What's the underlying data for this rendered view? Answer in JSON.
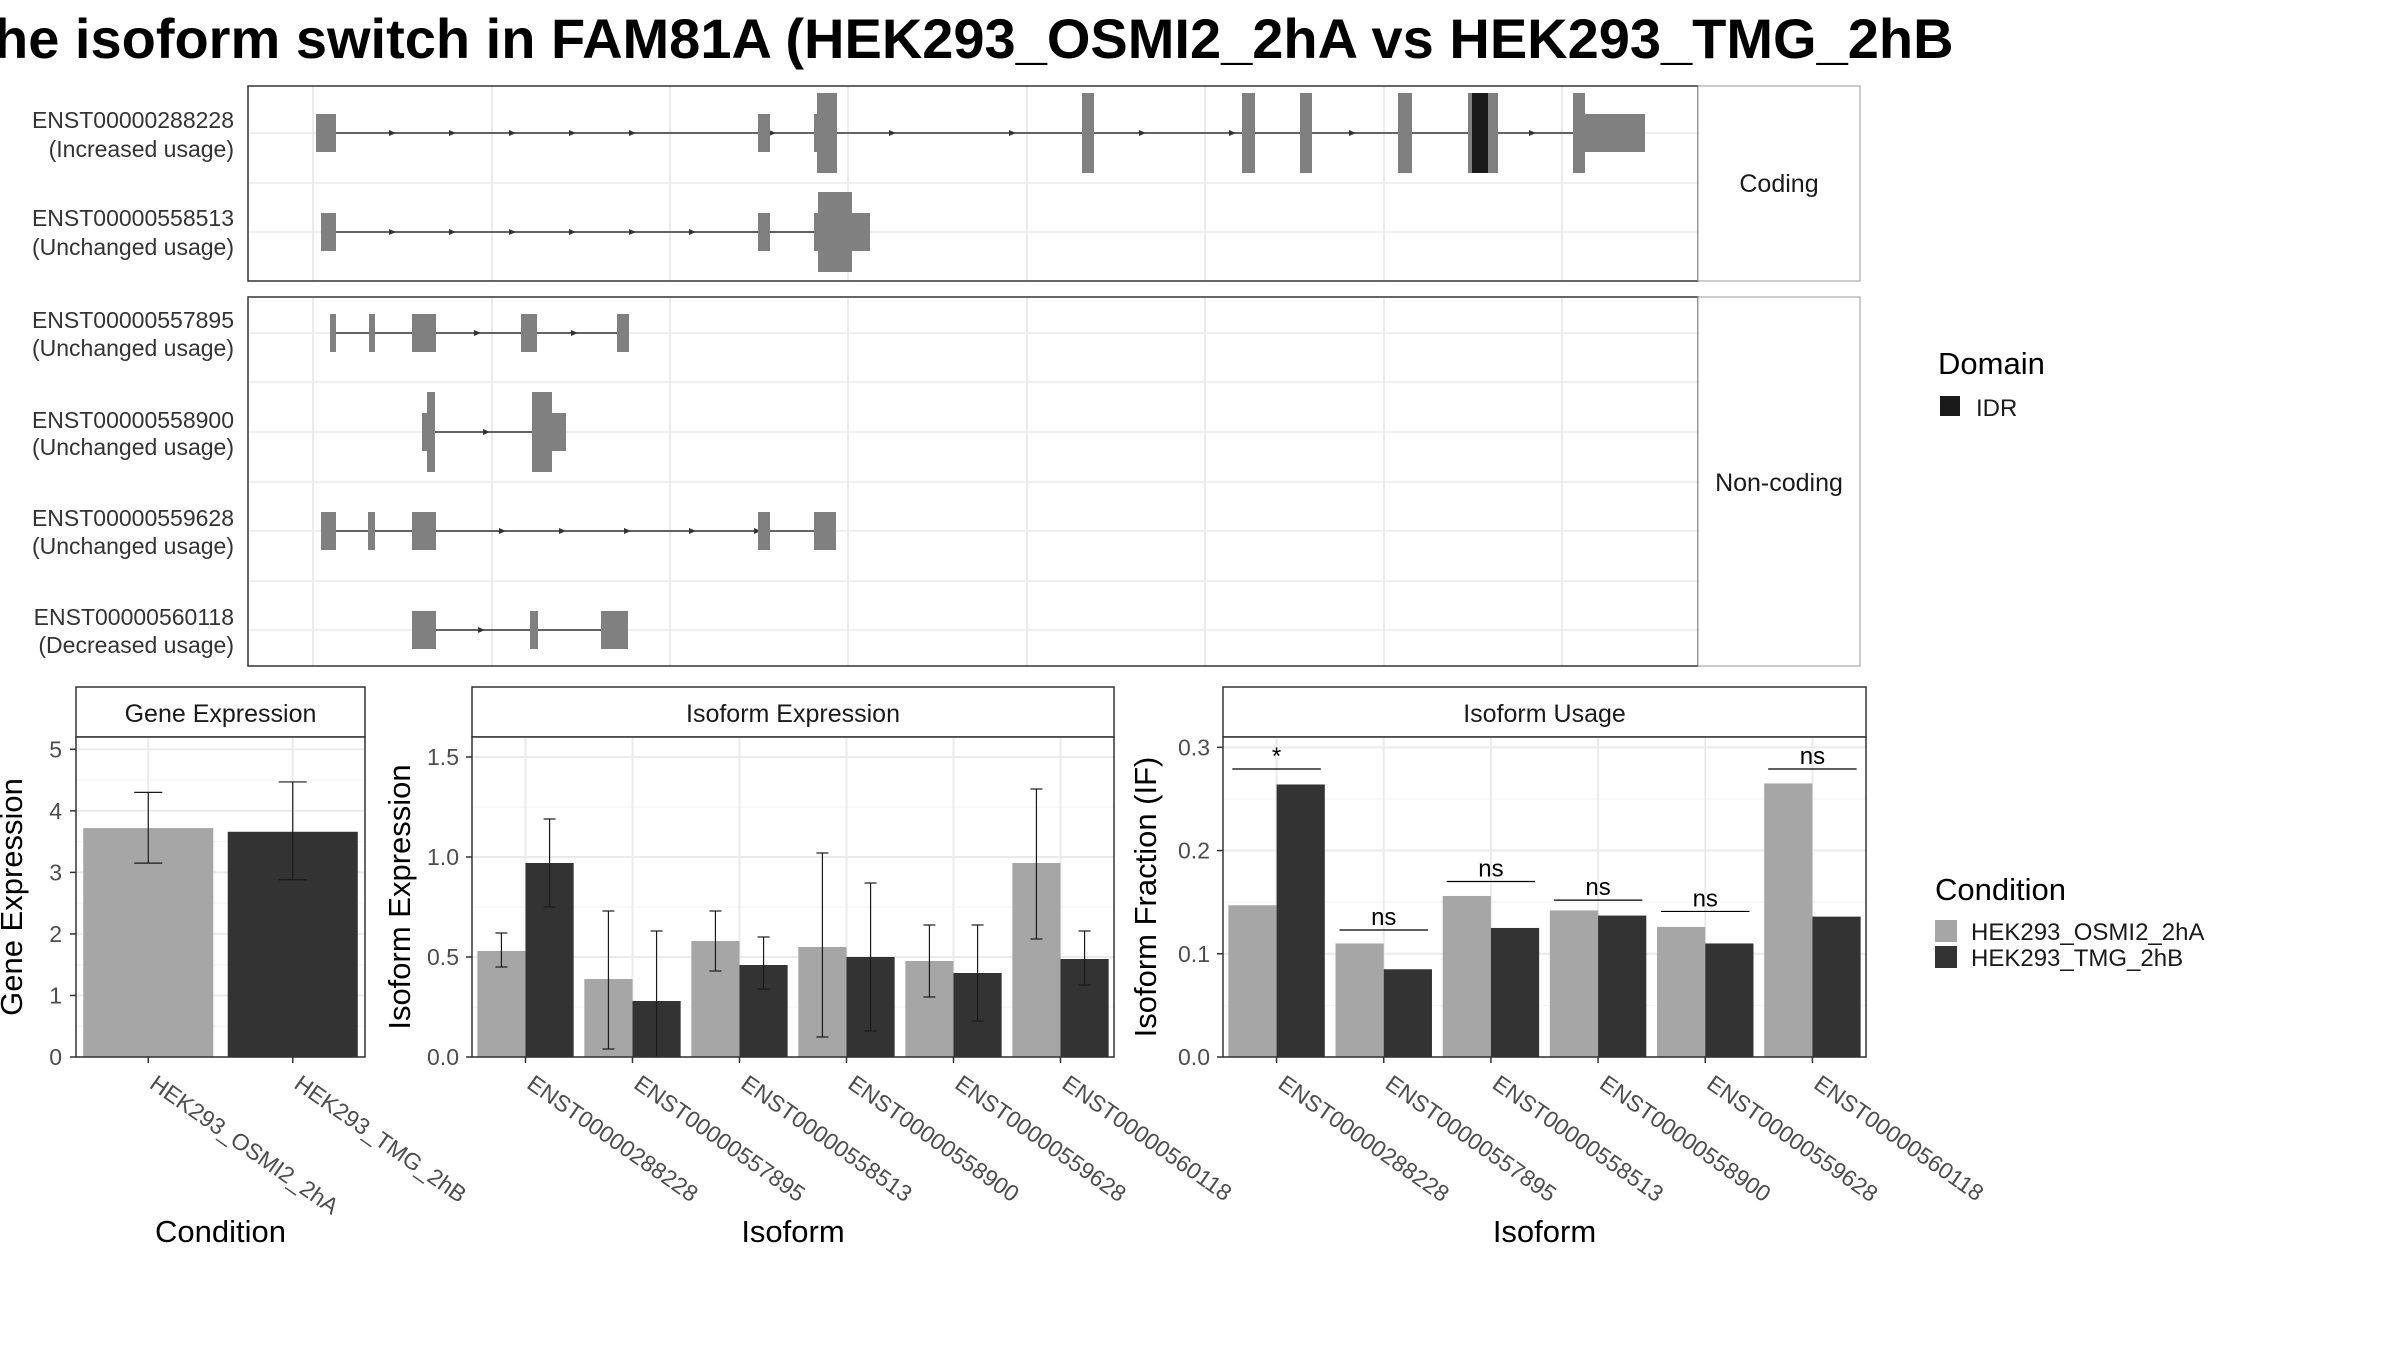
{
  "title": "he isoform switch in FAM81A (HEK293_OSMI2_2hA vs HEK293_TMG_2hB",
  "colors": {
    "cond_a": "#a6a6a6",
    "cond_b": "#333333",
    "exon": "#808080",
    "idr": "#1a1a1a",
    "grid": "#ebebeb"
  },
  "transcripts": {
    "coding_label": "Coding",
    "noncoding_label": "Non-coding",
    "coding": [
      {
        "id": "ENST00000288228",
        "usage": "(Increased usage)"
      },
      {
        "id": "ENST00000558513",
        "usage": "(Unchanged usage)"
      }
    ],
    "noncoding": [
      {
        "id": "ENST00000557895",
        "usage": "(Unchanged usage)"
      },
      {
        "id": "ENST00000558900",
        "usage": "(Unchanged usage)"
      },
      {
        "id": "ENST00000559628",
        "usage": "(Unchanged usage)"
      },
      {
        "id": "ENST00000560118",
        "usage": "(Decreased usage)"
      }
    ]
  },
  "legend": {
    "domain_title": "Domain",
    "domain_items": [
      "IDR"
    ],
    "condition_title": "Condition",
    "condition_items": [
      "HEK293_OSMI2_2hA",
      "HEK293_TMG_2hB"
    ]
  },
  "chart_data": [
    {
      "type": "bar",
      "title": "Gene Expression",
      "xlabel": "Condition",
      "ylabel": "Gene Expression",
      "ylim": [
        0,
        5.2
      ],
      "yticks": [
        0,
        1,
        2,
        3,
        4,
        5
      ],
      "categories": [
        "HEK293_OSMI2_2hA",
        "HEK293_TMG_2hB"
      ],
      "values": [
        3.72,
        3.66
      ],
      "errors": [
        [
          3.15,
          4.3
        ],
        [
          2.88,
          4.47
        ]
      ]
    },
    {
      "type": "bar",
      "title": "Isoform Expression",
      "xlabel": "Isoform",
      "ylabel": "Isoform Expression",
      "ylim": [
        0,
        1.6
      ],
      "yticks": [
        0.0,
        0.5,
        1.0,
        1.5
      ],
      "categories": [
        "ENST00000288228",
        "ENST00000557895",
        "ENST00000558513",
        "ENST00000558900",
        "ENST00000559628",
        "ENST00000560118"
      ],
      "series": [
        {
          "name": "HEK293_OSMI2_2hA",
          "values": [
            0.53,
            0.39,
            0.58,
            0.55,
            0.48,
            0.97
          ],
          "errors": [
            [
              0.45,
              0.62
            ],
            [
              0.04,
              0.73
            ],
            [
              0.43,
              0.73
            ],
            [
              0.1,
              1.02
            ],
            [
              0.3,
              0.66
            ],
            [
              0.59,
              1.34
            ]
          ]
        },
        {
          "name": "HEK293_TMG_2hB",
          "values": [
            0.97,
            0.28,
            0.46,
            0.5,
            0.42,
            0.49
          ],
          "errors": [
            [
              0.75,
              1.19
            ],
            [
              0.0,
              0.63
            ],
            [
              0.34,
              0.6
            ],
            [
              0.13,
              0.87
            ],
            [
              0.18,
              0.66
            ],
            [
              0.36,
              0.63
            ]
          ]
        }
      ]
    },
    {
      "type": "bar",
      "title": "Isoform Usage",
      "xlabel": "Isoform",
      "ylabel": "Isoform Fraction (IF)",
      "ylim": [
        0,
        0.31
      ],
      "yticks": [
        0.0,
        0.1,
        0.2,
        0.3
      ],
      "categories": [
        "ENST00000288228",
        "ENST00000557895",
        "ENST00000558513",
        "ENST00000558900",
        "ENST00000559628",
        "ENST00000560118"
      ],
      "series": [
        {
          "name": "HEK293_OSMI2_2hA",
          "values": [
            0.147,
            0.11,
            0.156,
            0.142,
            0.126,
            0.265
          ]
        },
        {
          "name": "HEK293_TMG_2hB",
          "values": [
            0.264,
            0.085,
            0.125,
            0.137,
            0.11,
            0.136
          ]
        }
      ],
      "significance": [
        {
          "label": "*",
          "y": 0.279
        },
        {
          "label": "ns",
          "y": 0.123
        },
        {
          "label": "ns",
          "y": 0.17
        },
        {
          "label": "ns",
          "y": 0.152
        },
        {
          "label": "ns",
          "y": 0.141
        },
        {
          "label": "ns",
          "y": 0.279
        }
      ]
    }
  ]
}
